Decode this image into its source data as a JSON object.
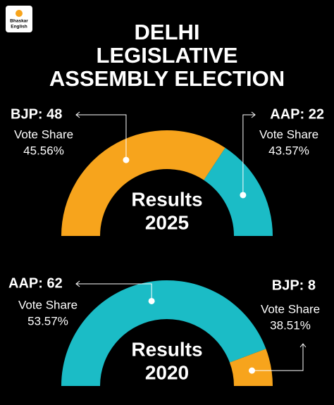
{
  "logo": [
    "Bhaskar",
    "English"
  ],
  "header": {
    "title": [
      "DELHI",
      "LEGISLATIVE",
      "ASSEMBLY ELECTION"
    ]
  },
  "chart_data": [
    {
      "type": "semicircle",
      "title": "Results",
      "subtitle": "2025",
      "values": [
        48,
        22
      ],
      "value_labels": [
        "BJP: 48",
        "AAP: 22"
      ],
      "colors": [
        "#f7a41c",
        "#1bbcc6"
      ],
      "vote_share_label": "Vote Share",
      "vote_share_labels": [
        "45.56%",
        "43.57%"
      ]
    },
    {
      "type": "semicircle",
      "title": "Results",
      "subtitle": "2020",
      "values": [
        62,
        8
      ],
      "value_labels": [
        "AAP: 62",
        "BJP: 8"
      ],
      "colors": [
        "#1bbcc6",
        "#f7a41c"
      ],
      "vote_share_label": "Vote Share",
      "vote_share_labels": [
        "53.57%",
        "38.51%"
      ]
    }
  ]
}
